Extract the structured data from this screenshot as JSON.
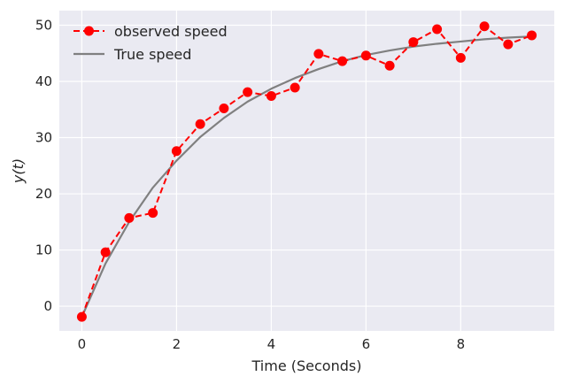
{
  "chart_data": {
    "type": "line",
    "title": "",
    "xlabel": "Time (Seconds)",
    "ylabel": "y(t)",
    "xlim": [
      -0.475,
      9.975
    ],
    "ylim": [
      -4.4,
      52.6
    ],
    "xticks": [
      0,
      2,
      4,
      6,
      8
    ],
    "yticks": [
      0,
      10,
      20,
      30,
      40,
      50
    ],
    "grid": true,
    "legend": {
      "position": "top-left"
    },
    "colors": {
      "background": "#eaeaf2",
      "grid": "#ffffff",
      "observed": "#ff0000",
      "true": "#808080"
    },
    "series": [
      {
        "name": "observed speed",
        "style": "dashed-markers",
        "color": "#ff0000",
        "x": [
          0,
          0.5,
          1,
          1.5,
          2,
          2.5,
          3,
          3.5,
          4,
          4.5,
          5,
          5.5,
          6,
          6.5,
          7,
          7.5,
          8,
          8.5,
          9,
          9.5
        ],
        "y": [
          -1.9,
          9.6,
          15.7,
          16.6,
          27.6,
          32.4,
          35.2,
          38.1,
          37.4,
          38.9,
          44.9,
          43.6,
          44.6,
          42.8,
          47.0,
          49.3,
          44.2,
          49.8,
          46.6,
          48.2
        ]
      },
      {
        "name": "True speed",
        "style": "solid",
        "color": "#808080",
        "x": [
          0,
          0.5,
          1,
          1.5,
          2,
          2.5,
          3,
          3.5,
          4,
          4.5,
          5,
          5.5,
          6,
          6.5,
          7,
          7.5,
          8,
          8.5,
          9,
          9.5
        ],
        "y": [
          -1.9,
          7.6,
          15.0,
          21.1,
          25.9,
          30.1,
          33.5,
          36.4,
          38.7,
          40.6,
          42.2,
          43.6,
          44.7,
          45.5,
          46.2,
          46.7,
          47.1,
          47.5,
          47.8,
          48.0
        ]
      }
    ]
  }
}
